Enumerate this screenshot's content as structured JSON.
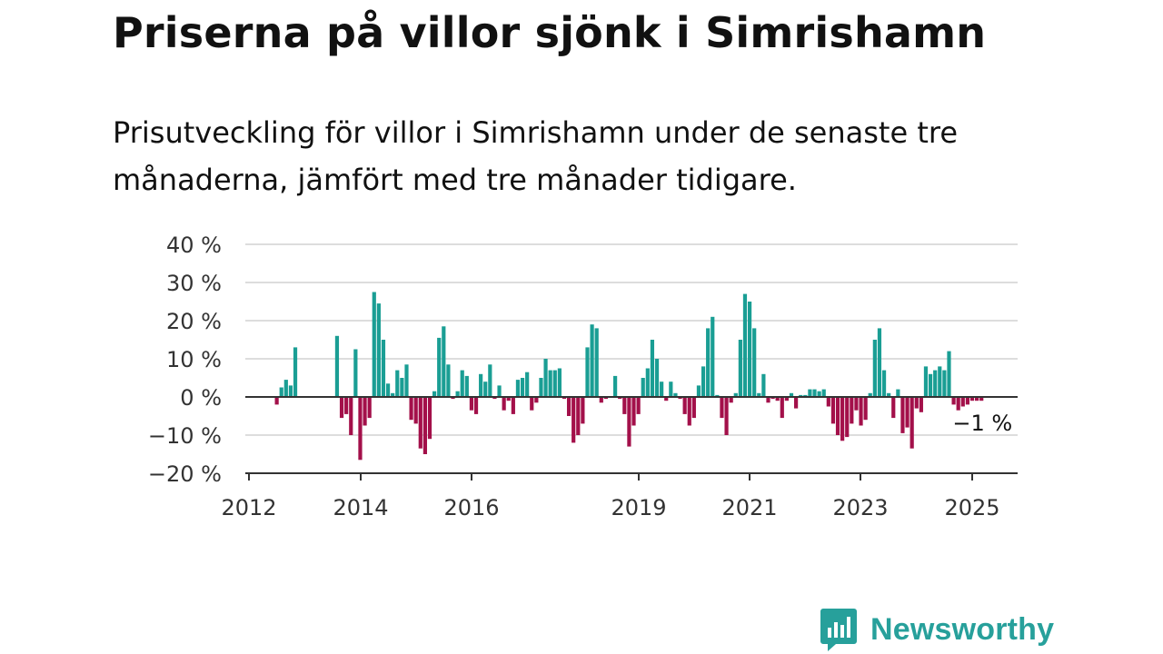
{
  "header": {
    "title": "Priserna på villor sjönk i Simrishamn",
    "subtitle": "Prisutveckling för villor i Simrishamn under de senaste tre månaderna, jämfört med tre månader tidigare."
  },
  "brand": {
    "name": "Newsworthy",
    "icon": "newsworthy-logo-icon"
  },
  "colors": {
    "positive": "#1a9e94",
    "negative": "#a3104a",
    "grid": "#dddddd",
    "axis": "#333333",
    "brand": "#27a09b"
  },
  "chart_data": {
    "type": "bar",
    "ylim": [
      -20,
      40
    ],
    "yticks": [
      40,
      30,
      20,
      10,
      0,
      -10,
      -20
    ],
    "ytick_labels": [
      "40 %",
      "30 %",
      "20 %",
      "10 %",
      "0 %",
      "−10 %",
      "−20 %"
    ],
    "xticks": [
      "2012",
      "2014",
      "2016",
      "2019",
      "2021",
      "2023",
      "2025"
    ],
    "xtick_dates": [
      "2012-01",
      "2014-01",
      "2016-01",
      "2019-01",
      "2021-01",
      "2023-01",
      "2025-01"
    ],
    "grid": true,
    "last_value_label": "−1 %",
    "series": [
      {
        "x": [
          "2012-07",
          "2012-08",
          "2012-09",
          "2012-10",
          "2012-11",
          "2013-08",
          "2013-09",
          "2013-10",
          "2013-11",
          "2013-12",
          "2014-01",
          "2014-02",
          "2014-03",
          "2014-04",
          "2014-05",
          "2014-06",
          "2014-07",
          "2014-08",
          "2014-09",
          "2014-10",
          "2014-11",
          "2014-12",
          "2015-01",
          "2015-02",
          "2015-03",
          "2015-04",
          "2015-05",
          "2015-06",
          "2015-07",
          "2015-08",
          "2015-09",
          "2015-10",
          "2015-11",
          "2015-12",
          "2016-01",
          "2016-02",
          "2016-03",
          "2016-04",
          "2016-05",
          "2016-06",
          "2016-07",
          "2016-08",
          "2016-09",
          "2016-10",
          "2016-11",
          "2016-12",
          "2017-01",
          "2017-02",
          "2017-03",
          "2017-04",
          "2017-05",
          "2017-06",
          "2017-07",
          "2017-08",
          "2017-09",
          "2017-10",
          "2017-11",
          "2017-12",
          "2018-01",
          "2018-02",
          "2018-03",
          "2018-04",
          "2018-05",
          "2018-06",
          "2018-07",
          "2018-08",
          "2018-09",
          "2018-10",
          "2018-11",
          "2018-12",
          "2019-01",
          "2019-02",
          "2019-03",
          "2019-04",
          "2019-05",
          "2019-06",
          "2019-07",
          "2019-08",
          "2019-09",
          "2019-10",
          "2019-11",
          "2019-12",
          "2020-01",
          "2020-02",
          "2020-03",
          "2020-04",
          "2020-05",
          "2020-06",
          "2020-07",
          "2020-08",
          "2020-09",
          "2020-10",
          "2020-11",
          "2020-12",
          "2021-01",
          "2021-02",
          "2021-03",
          "2021-04",
          "2021-05",
          "2021-06",
          "2021-07",
          "2021-08",
          "2021-09",
          "2021-10",
          "2021-11",
          "2021-12",
          "2022-01",
          "2022-02",
          "2022-03",
          "2022-04",
          "2022-05",
          "2022-06",
          "2022-07",
          "2022-08",
          "2022-09",
          "2022-10",
          "2022-11",
          "2022-12",
          "2023-01",
          "2023-02",
          "2023-03",
          "2023-04",
          "2023-05",
          "2023-06",
          "2023-07",
          "2023-08",
          "2023-09",
          "2023-10",
          "2023-11",
          "2023-12",
          "2024-01",
          "2024-02",
          "2024-03",
          "2024-04",
          "2024-05",
          "2024-06",
          "2024-07",
          "2024-08",
          "2024-09",
          "2024-10",
          "2024-11",
          "2024-12",
          "2025-01",
          "2025-02",
          "2025-03"
        ],
        "values": [
          -2,
          2.5,
          4.5,
          3,
          13,
          16,
          -5.5,
          -4.5,
          -10,
          12.5,
          -16.5,
          -7.5,
          -5.5,
          27.5,
          24.5,
          15,
          3.5,
          1,
          7,
          5,
          8.5,
          -6,
          -7,
          -13.5,
          -15,
          -11,
          1.5,
          15.5,
          18.5,
          8.5,
          -0.5,
          1.5,
          7,
          5.5,
          -3.5,
          -4.5,
          6,
          4,
          8.5,
          -0.5,
          3,
          -3.5,
          -1,
          -4.5,
          4.5,
          5,
          6.5,
          -3.5,
          -1.5,
          5,
          10,
          7,
          7,
          7.5,
          -0.5,
          -5,
          -12,
          -10,
          -7,
          13,
          19,
          18,
          -1.5,
          -0.5,
          0,
          5.5,
          -0.5,
          -4.5,
          -13,
          -7.5,
          -4.5,
          5,
          7.5,
          15,
          10,
          4,
          -1,
          4,
          1,
          -0.5,
          -4.5,
          -7.5,
          -5.5,
          3,
          8,
          18,
          21,
          0.5,
          -5.5,
          -10,
          -1.5,
          1,
          15,
          27,
          25,
          18,
          1,
          6,
          -1.5,
          -0.5,
          -1,
          -5.5,
          -1,
          1,
          -3,
          0.5,
          0.5,
          2,
          2,
          1.5,
          2,
          -2.5,
          -7,
          -10,
          -11.5,
          -10.5,
          -7,
          -3.5,
          -7.5,
          -6,
          1,
          15,
          18,
          7,
          1,
          -5.5,
          2,
          -9.5,
          -8,
          -13.5,
          -3,
          -4,
          8,
          6,
          7,
          8,
          7,
          12,
          -2,
          -3.5,
          -2.5,
          -2,
          -1,
          -1,
          -1
        ]
      }
    ]
  }
}
